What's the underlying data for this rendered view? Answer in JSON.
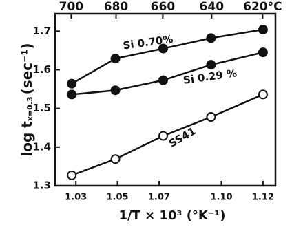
{
  "chart_data": {
    "type": "line",
    "ylabel": "log t",
    "ylabel_sub": "x=0.3",
    "ylabel_unit": "(sec⁻¹)",
    "xlabel": "1/T × 10³ (°K⁻¹)",
    "xlim": [
      1.02,
      1.126
    ],
    "ylim": [
      1.3,
      1.745
    ],
    "xticks": [
      1.03,
      1.05,
      1.07,
      {
        "value": 1.1,
        "label": "1.10"
      },
      1.12
    ],
    "yticks": [
      1.3,
      1.4,
      1.5,
      1.6,
      1.7
    ],
    "x2ticks": [
      700,
      680,
      660,
      640,
      {
        "value": 620,
        "label": "620°C"
      }
    ],
    "series": [
      {
        "name": "Si 0.70%",
        "color": "#111111",
        "marker": "filled",
        "x": [
          1.028,
          1.049,
          1.072,
          1.095,
          1.12
        ],
        "values": [
          1.564,
          1.629,
          1.655,
          1.682,
          1.704
        ]
      },
      {
        "name": "Si 0.29 %",
        "color": "#111111",
        "marker": "filled",
        "x": [
          1.028,
          1.049,
          1.072,
          1.095,
          1.12
        ],
        "values": [
          1.536,
          1.547,
          1.573,
          1.613,
          1.645
        ]
      },
      {
        "name": "SS41",
        "color": "#111111",
        "marker": "open",
        "x": [
          1.028,
          1.049,
          1.072,
          1.095,
          1.12
        ],
        "values": [
          1.327,
          1.369,
          1.429,
          1.478,
          1.536
        ]
      }
    ]
  }
}
